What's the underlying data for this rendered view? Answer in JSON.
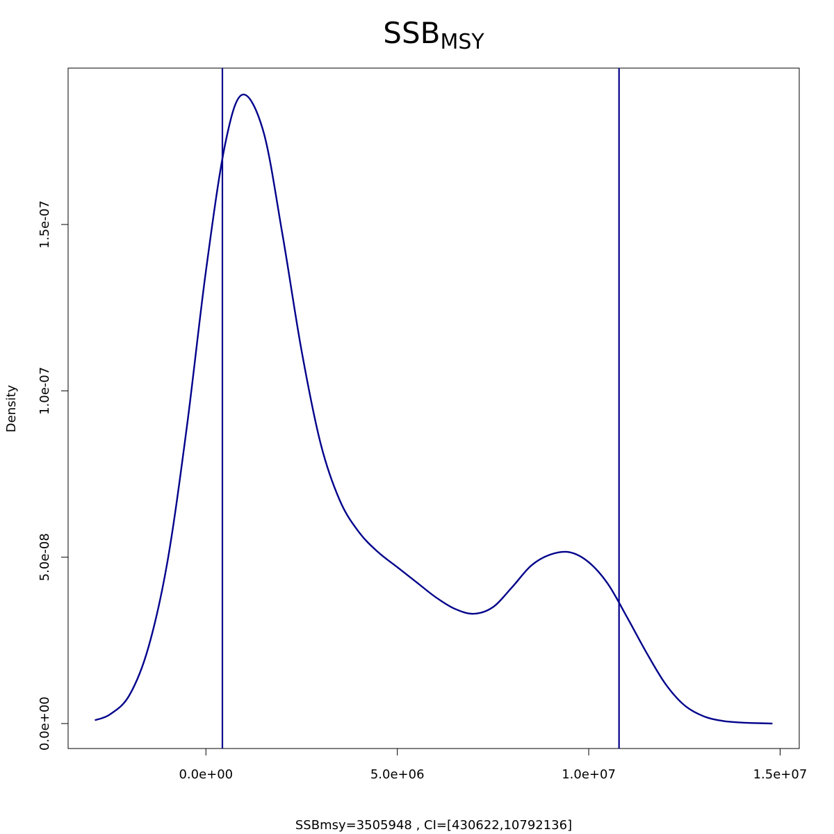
{
  "chart_data": {
    "type": "line",
    "title": "SSB",
    "title_subscript": "MSY",
    "xlabel": "SSBmsy=3505948 , CI=[430622,10792136]",
    "ylabel": "Density",
    "xlim": [
      -3600000,
      15500000
    ],
    "ylim": [
      -7.5e-09,
      1.97e-07
    ],
    "x_ticks": [
      0,
      5000000,
      10000000,
      15000000
    ],
    "x_tick_labels": [
      "0.0e+00",
      "5.0e+06",
      "1.0e+07",
      "1.5e+07"
    ],
    "y_ticks": [
      0,
      5e-08,
      1e-07,
      1.5e-07
    ],
    "y_tick_labels": [
      "0.0e+00",
      "5.0e-08",
      "1.0e-07",
      "1.5e-07"
    ],
    "grid": false,
    "line_color": "#00008B",
    "series": [
      {
        "x": [
          -2900000,
          -2500000,
          -2000000,
          -1500000,
          -1000000,
          -500000,
          0,
          500000,
          950000,
          1500000,
          2000000,
          2500000,
          3000000,
          3500000,
          4000000,
          4500000,
          5000000,
          5500000,
          6000000,
          6500000,
          7000000,
          7500000,
          8000000,
          8500000,
          9000000,
          9500000,
          10000000,
          10500000,
          11000000,
          11500000,
          12000000,
          12500000,
          13000000,
          13500000,
          14000000,
          14500000,
          14800000
        ],
        "y": [
          1e-09,
          2.8e-09,
          8.5e-09,
          2.3e-08,
          4.9e-08,
          8.9e-08,
          1.36e-07,
          1.74e-07,
          1.89e-07,
          1.78e-07,
          1.47e-07,
          1.12e-07,
          8.4e-08,
          6.7e-08,
          5.75e-08,
          5.15e-08,
          4.7e-08,
          4.25e-08,
          3.8e-08,
          3.45e-08,
          3.3e-08,
          3.5e-08,
          4.1e-08,
          4.75e-08,
          5.08e-08,
          5.15e-08,
          4.85e-08,
          4.2e-08,
          3.2e-08,
          2.15e-08,
          1.2e-08,
          5.5e-09,
          2.2e-09,
          8e-10,
          3e-10,
          1e-10,
          0
        ]
      }
    ],
    "vertical_lines": [
      430622,
      10792136
    ]
  }
}
